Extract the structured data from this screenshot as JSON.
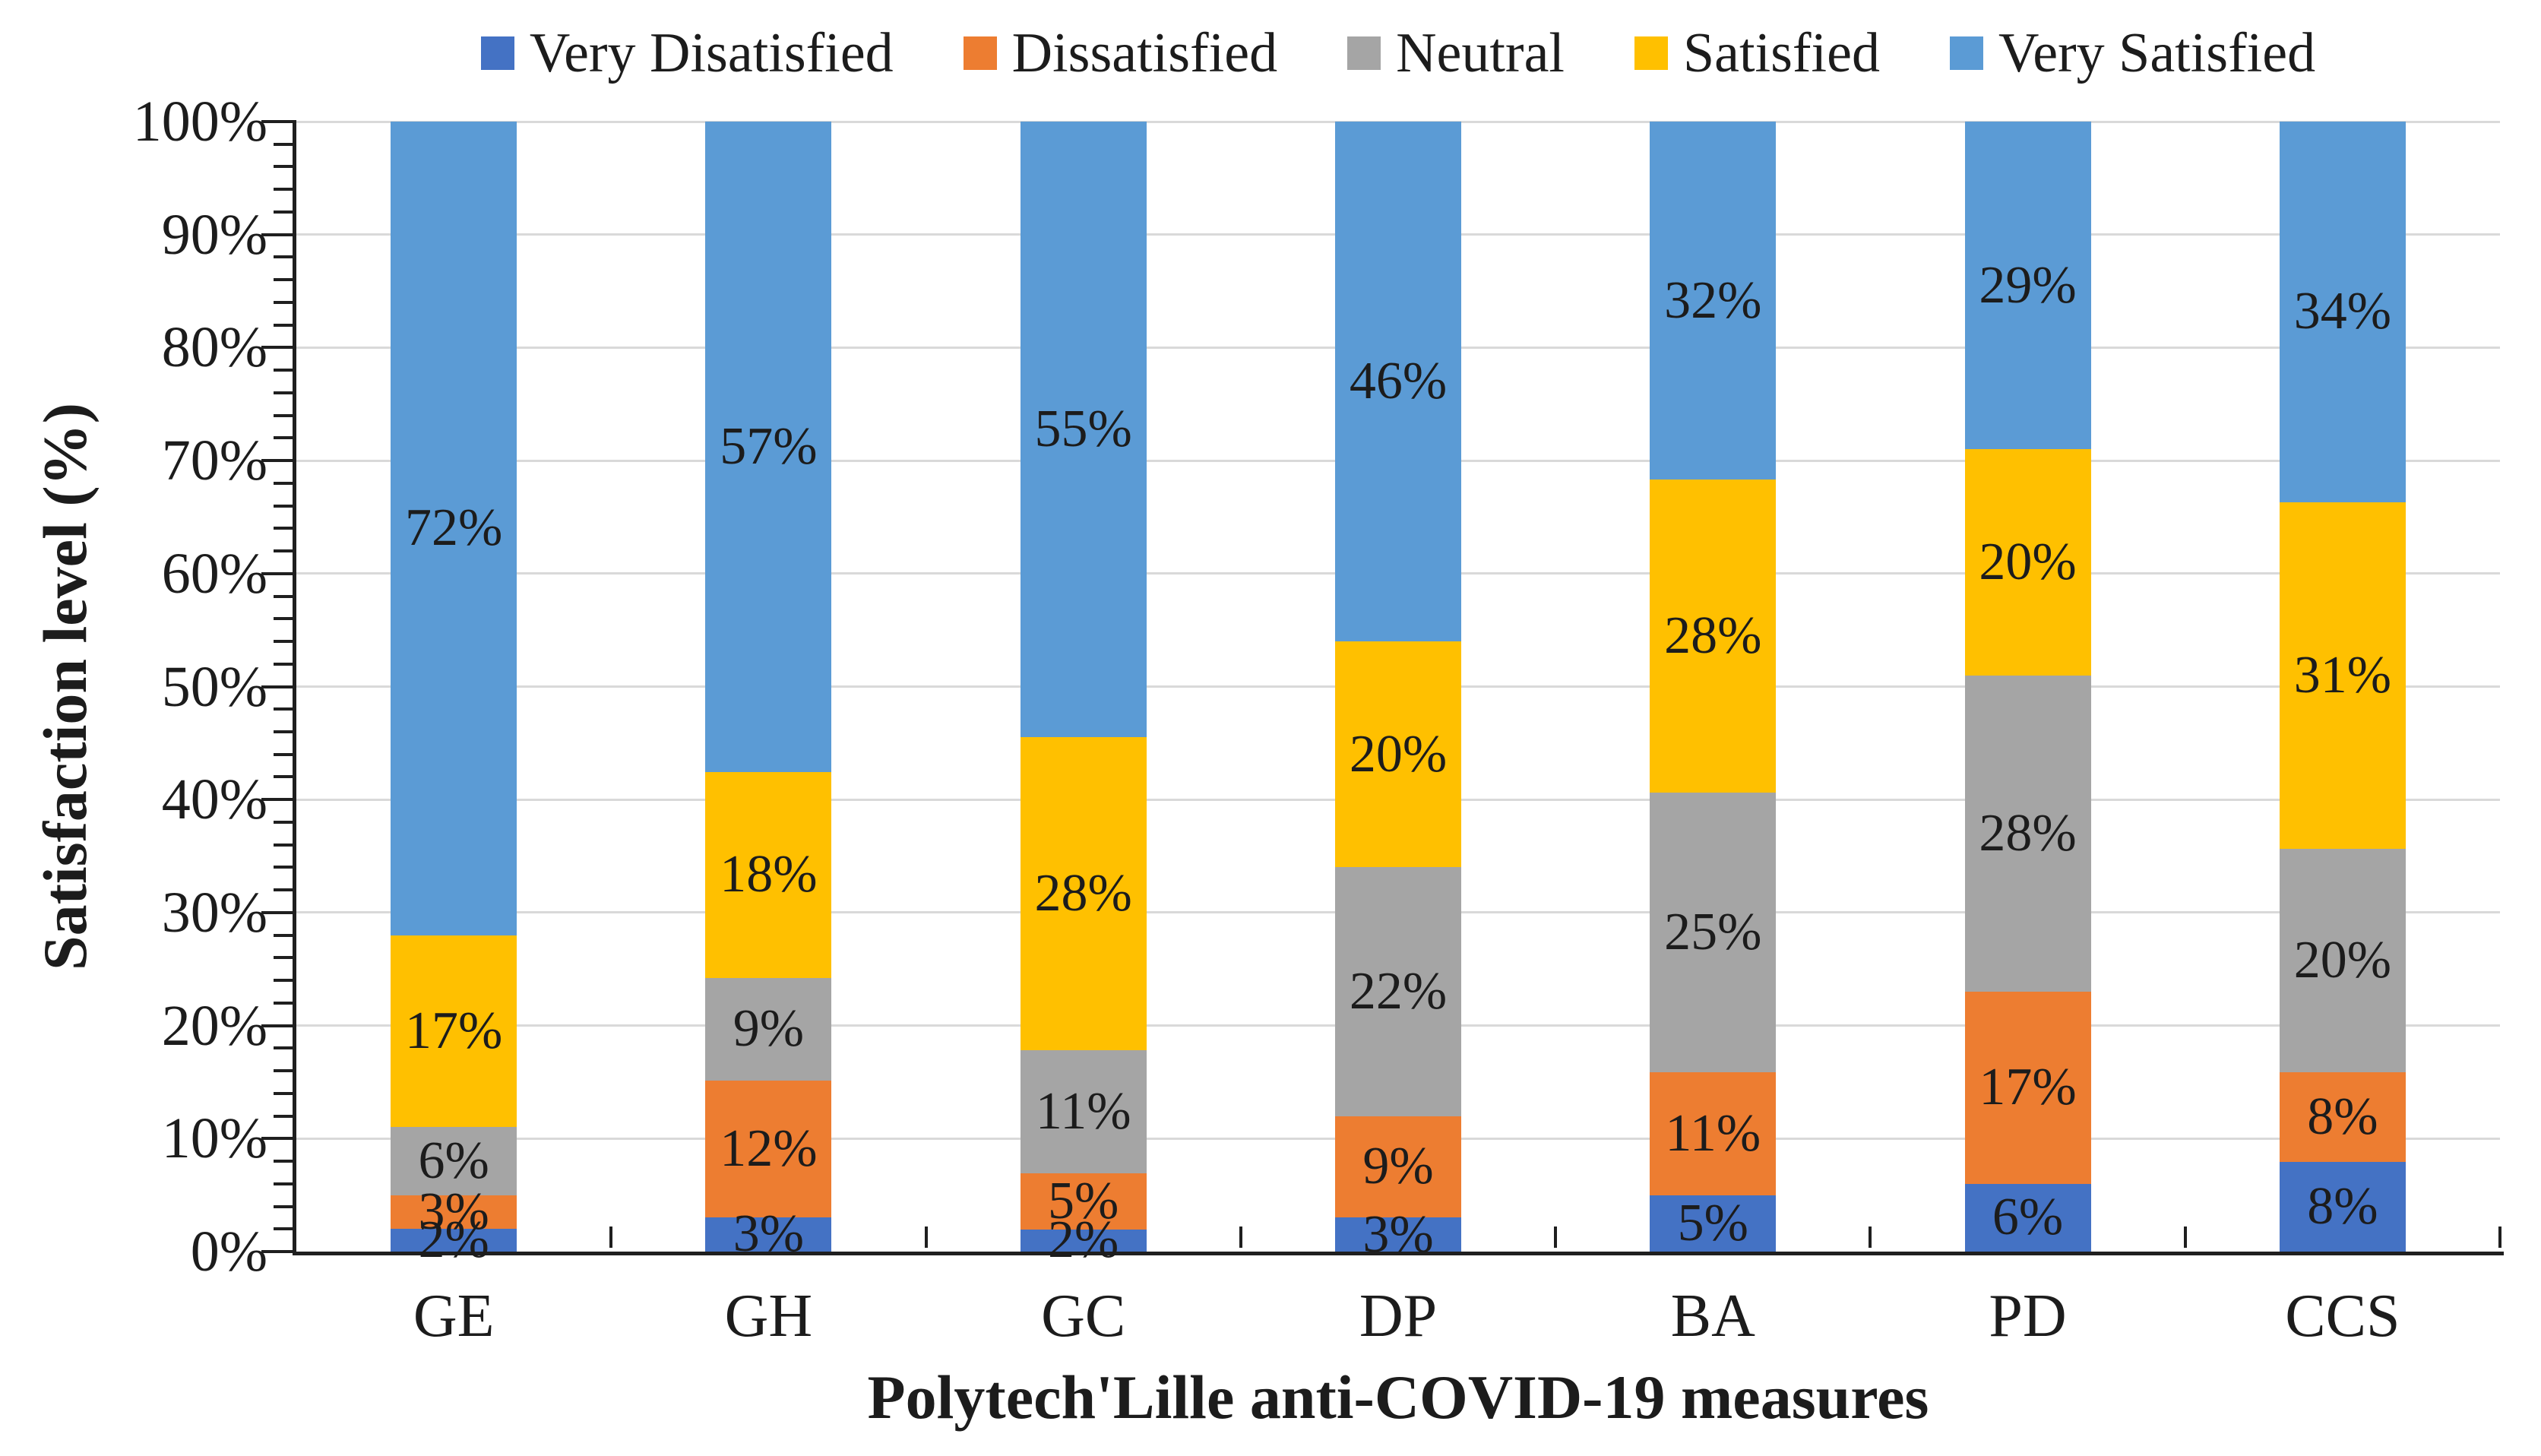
{
  "chart_data": {
    "type": "bar",
    "subtype": "stacked-100-percent",
    "title": "",
    "xlabel": "Polytech'Lille anti-COVID-19 measures",
    "ylabel": "Satisfaction level (%)",
    "categories": [
      "GE",
      "GH",
      "GC",
      "DP",
      "BA",
      "PD",
      "CCS"
    ],
    "series": [
      {
        "name": "Very Disatisfied",
        "color": "#4472C4",
        "values": [
          2,
          3,
          2,
          3,
          5,
          6,
          8
        ]
      },
      {
        "name": "Dissatisfied",
        "color": "#ED7D31",
        "values": [
          3,
          12,
          5,
          9,
          11,
          17,
          8
        ]
      },
      {
        "name": "Neutral",
        "color": "#A5A5A5",
        "values": [
          6,
          9,
          11,
          22,
          25,
          28,
          20
        ]
      },
      {
        "name": "Satisfied",
        "color": "#FFC000",
        "values": [
          17,
          18,
          28,
          20,
          28,
          20,
          31
        ]
      },
      {
        "name": "Very Satisfied",
        "color": "#5B9BD5",
        "values": [
          72,
          57,
          55,
          46,
          32,
          29,
          34
        ]
      }
    ],
    "data_label_format": "{v}%",
    "y_ticks": [
      "0%",
      "10%",
      "20%",
      "30%",
      "40%",
      "50%",
      "60%",
      "70%",
      "80%",
      "90%",
      "100%"
    ],
    "ylim": [
      0,
      100
    ],
    "y_major_step": 10,
    "y_minor_step": 2,
    "grid": true,
    "legend_position": "top",
    "colors": {
      "axis": "#1F1F1F",
      "gridline": "#D9D9D9",
      "label_text": "#1C1C1C",
      "background": "#FFFFFF"
    }
  }
}
